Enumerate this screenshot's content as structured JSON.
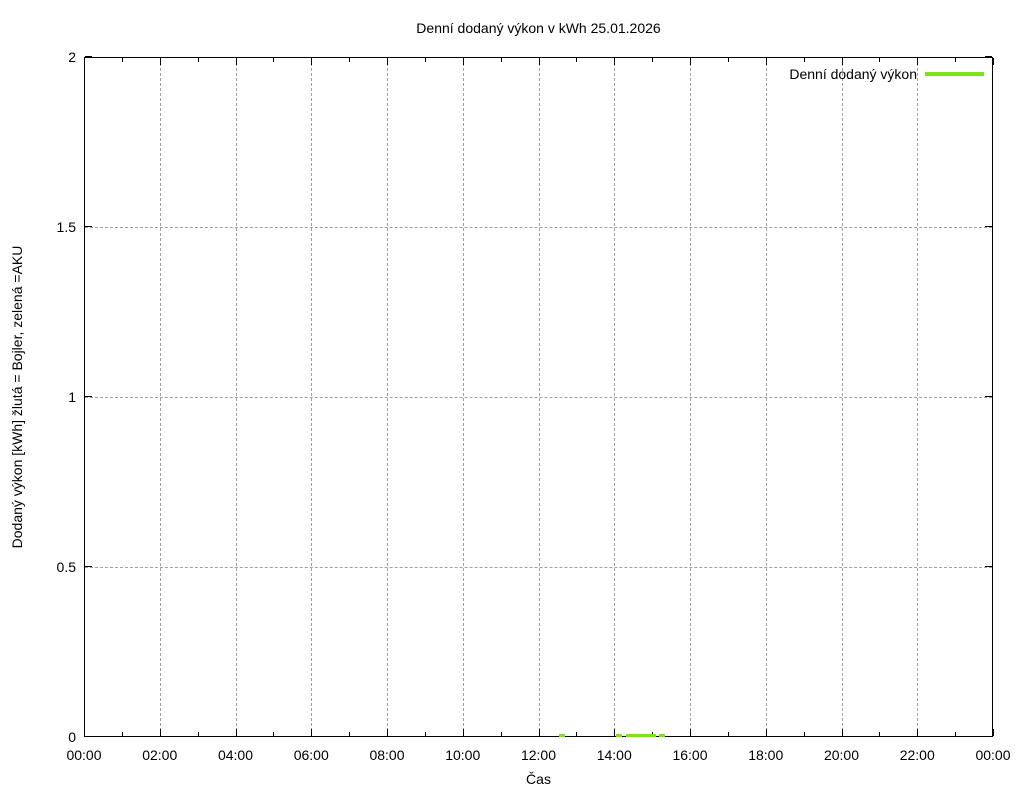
{
  "title": "Denní dodaný výkon v kWh 25.01.2026",
  "legend": {
    "label": "Denní dodaný výkon",
    "line_color": "#7ce519"
  },
  "axes": {
    "xlabel": "Čas",
    "ylabel": "Dodaný výkon [kWh]  žlutá = Bojler, zelená =AKU"
  },
  "colors": {
    "series_green": "#7ce519",
    "grid": "#a0a0a0",
    "border": "#000000",
    "text": "#000000",
    "background": "#ffffff"
  },
  "chart_data": {
    "type": "line",
    "title": "Denní dodaný výkon v kWh 25.01.2026",
    "xlabel": "Čas",
    "ylabel": "Dodaný výkon [kWh]  žlutá = Bojler, zelená =AKU",
    "x_tick_labels": [
      "00:00",
      "02:00",
      "04:00",
      "06:00",
      "08:00",
      "10:00",
      "12:00",
      "14:00",
      "16:00",
      "18:00",
      "20:00",
      "22:00",
      "00:00"
    ],
    "x_minor_tick_hours": [
      1,
      3,
      5,
      7,
      9,
      11,
      13,
      15,
      17,
      19,
      21,
      23
    ],
    "x_range_hours": [
      0,
      24
    ],
    "y_ticks": [
      0,
      0.5,
      1,
      1.5,
      2
    ],
    "ylim": [
      0,
      2
    ],
    "grid": true,
    "legend_position": "top-right",
    "series": [
      {
        "name": "Denní dodaný výkon",
        "color": "#7ce519",
        "points": [
          {
            "time": "12:37",
            "hours": 12.62,
            "kwh": 0.005
          },
          {
            "time": "14:08",
            "hours": 14.13,
            "kwh": 0.005
          },
          {
            "time": "14:23",
            "hours": 14.38,
            "kwh": 0.005
          },
          {
            "time": "14:33",
            "hours": 14.55,
            "kwh": 0.005
          },
          {
            "time": "14:42",
            "hours": 14.7,
            "kwh": 0.005
          },
          {
            "time": "14:52",
            "hours": 14.87,
            "kwh": 0.005
          },
          {
            "time": "15:01",
            "hours": 15.02,
            "kwh": 0.005
          },
          {
            "time": "15:16",
            "hours": 15.27,
            "kwh": 0.005
          }
        ]
      }
    ]
  }
}
